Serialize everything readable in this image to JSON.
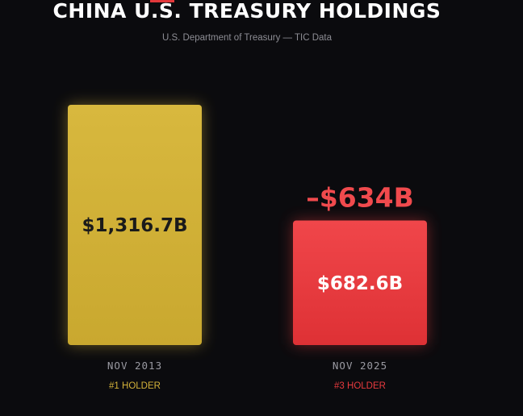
{
  "header": {
    "title": "CHINA U.S. TREASURY HOLDINGS",
    "subtitle": "U.S. Department of Treasury — TIC Data"
  },
  "colors": {
    "background": "#0b0b0e",
    "gold": "#d4b23a",
    "red": "#e83a3e",
    "value_text_dark": "#1a1a1a",
    "value_text_light": "#ffffff",
    "date_text": "#9a9aa2",
    "change_text": "#f04a4d"
  },
  "chart_data": {
    "type": "bar",
    "title": "CHINA U.S. TREASURY HOLDINGS",
    "subtitle": "U.S. Department of Treasury — TIC Data",
    "categories": [
      "NOV 2013",
      "NOV 2025"
    ],
    "values": [
      1316.7,
      682.6
    ],
    "value_labels": [
      "$1,316.7B",
      "$682.6B"
    ],
    "rank_labels": [
      "#1 HOLDER",
      "#3 HOLDER"
    ],
    "bar_colors": [
      "#d4b23a",
      "#e83a3e"
    ],
    "change_annotation": "–$634B",
    "unit": "billions USD",
    "ylim": [
      0,
      1316.7
    ],
    "grid": false,
    "legend": "none"
  }
}
